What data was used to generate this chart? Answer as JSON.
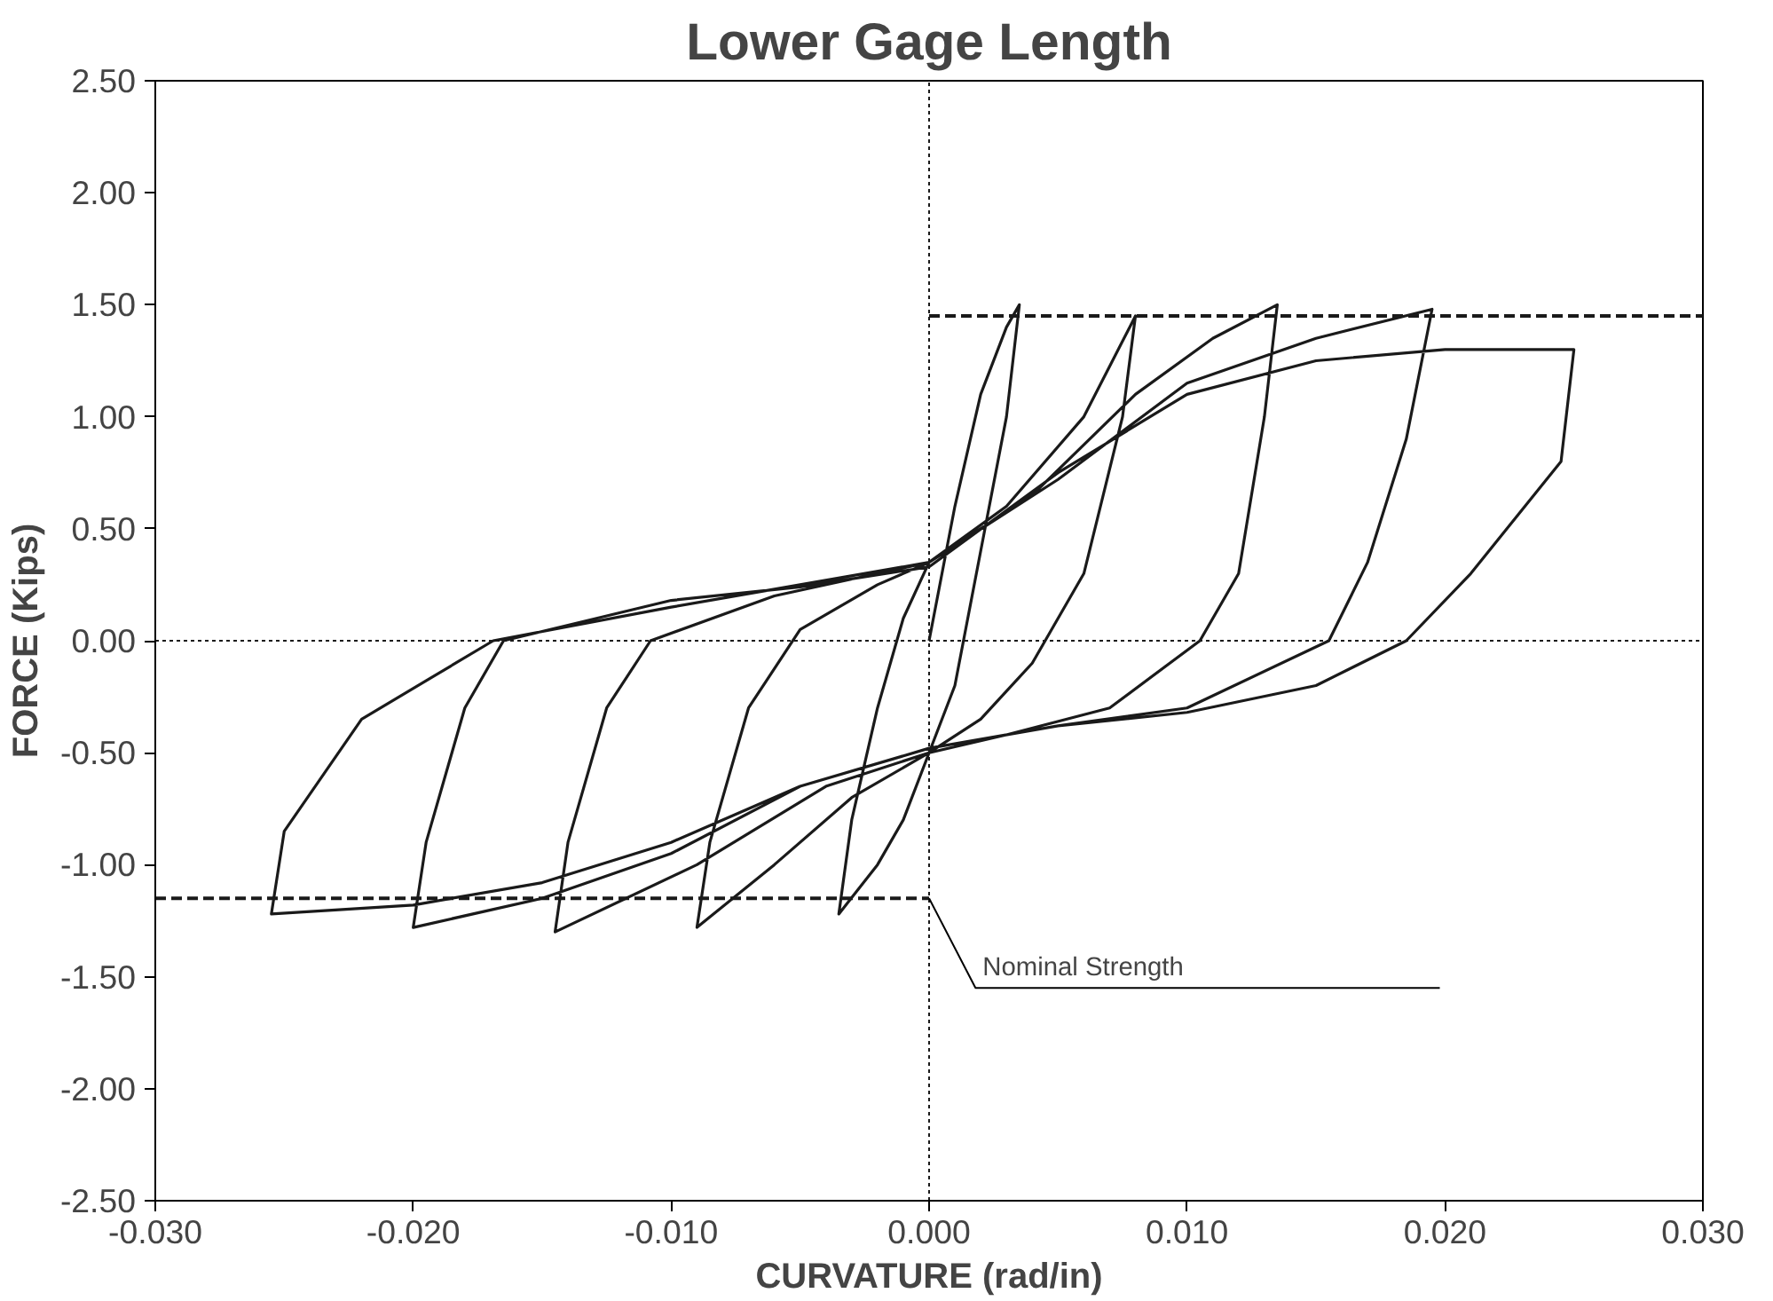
{
  "chart_data": {
    "type": "line",
    "title": "Lower Gage Length",
    "xlabel": "CURVATURE (rad/in)",
    "ylabel": "FORCE (Kips)",
    "xlim": [
      -0.03,
      0.03
    ],
    "ylim": [
      -2.5,
      2.5
    ],
    "xticks": [
      {
        "value": -0.03,
        "label": "-0.030"
      },
      {
        "value": -0.02,
        "label": "-0.020"
      },
      {
        "value": -0.01,
        "label": "-0.010"
      },
      {
        "value": 0,
        "label": "0.000"
      },
      {
        "value": 0.01,
        "label": "0.010"
      },
      {
        "value": 0.02,
        "label": "0.020"
      },
      {
        "value": 0.03,
        "label": "0.030"
      }
    ],
    "yticks": [
      {
        "value": 2.5,
        "label": "2.50"
      },
      {
        "value": 2.0,
        "label": "2.00"
      },
      {
        "value": 1.5,
        "label": "1.50"
      },
      {
        "value": 1.0,
        "label": "1.00"
      },
      {
        "value": 0.5,
        "label": "0.50"
      },
      {
        "value": 0,
        "label": "0.00"
      },
      {
        "value": -0.5,
        "label": "-0.50"
      },
      {
        "value": -1.0,
        "label": "-1.00"
      },
      {
        "value": -1.5,
        "label": "-1.50"
      },
      {
        "value": -2.0,
        "label": "-2.00"
      },
      {
        "value": -2.5,
        "label": "-2.50"
      }
    ],
    "grid": false,
    "marker": "none",
    "series": [
      {
        "color": "#1a1a1a",
        "line_style": "solid",
        "x": [
          0,
          0.001,
          0.002,
          0.003,
          0.0035,
          0.003,
          0.002,
          0.001,
          0,
          -0.001,
          -0.002,
          -0.0035,
          -0.003,
          -0.002,
          -0.001,
          0,
          0.003,
          0.006,
          0.008,
          0.0075,
          0.006,
          0.004,
          0.002,
          0,
          -0.003,
          -0.006,
          -0.009,
          -0.0085,
          -0.007,
          -0.005,
          -0.002,
          0,
          0.004,
          0.008,
          0.011,
          0.0135,
          0.013,
          0.012,
          0.0105,
          0.007,
          0.003,
          0,
          -0.004,
          -0.009,
          -0.0145,
          -0.014,
          -0.0125,
          -0.0108,
          -0.006,
          0,
          0.005,
          0.01,
          0.015,
          0.0195,
          0.0185,
          0.017,
          0.0155,
          0.01,
          0.005,
          0,
          -0.005,
          -0.01,
          -0.015,
          -0.02,
          -0.0195,
          -0.018,
          -0.0165,
          -0.01,
          -0.005,
          0,
          0.005,
          0.01,
          0.015,
          0.02,
          0.025,
          0.0245,
          0.021,
          0.0185,
          0.015,
          0.01,
          0.005,
          0,
          -0.005,
          -0.01,
          -0.015,
          -0.02,
          -0.0255,
          -0.025,
          -0.022,
          -0.0169,
          -0.01,
          -0.005,
          0
        ],
        "values": [
          0,
          0.6,
          1.1,
          1.4,
          1.5,
          1.0,
          0.4,
          -0.2,
          -0.5,
          -0.8,
          -1.0,
          -1.22,
          -0.8,
          -0.3,
          0.1,
          0.35,
          0.6,
          1.0,
          1.45,
          1.0,
          0.3,
          -0.1,
          -0.35,
          -0.5,
          -0.7,
          -1.0,
          -1.28,
          -0.9,
          -0.3,
          0.05,
          0.25,
          0.35,
          0.65,
          1.1,
          1.35,
          1.5,
          1.0,
          0.3,
          0,
          -0.3,
          -0.42,
          -0.5,
          -0.65,
          -1.0,
          -1.3,
          -0.9,
          -0.3,
          0,
          0.2,
          0.35,
          0.72,
          1.15,
          1.35,
          1.48,
          0.9,
          0.35,
          0,
          -0.3,
          -0.38,
          -0.48,
          -0.65,
          -0.95,
          -1.15,
          -1.28,
          -0.9,
          -0.3,
          0,
          0.18,
          0.24,
          0.33,
          0.75,
          1.1,
          1.25,
          1.3,
          1.3,
          0.8,
          0.3,
          0,
          -0.2,
          -0.32,
          -0.38,
          -0.48,
          -0.65,
          -0.9,
          -1.08,
          -1.18,
          -1.22,
          -0.85,
          -0.35,
          0,
          0.15,
          0.25,
          0.35
        ]
      },
      {
        "color": "#1a1a1a",
        "line_style": "dashed",
        "x": [
          0,
          0.03
        ],
        "values": [
          1.45,
          1.45
        ]
      },
      {
        "color": "#1a1a1a",
        "line_style": "dashed",
        "x": [
          -0.03,
          0
        ],
        "values": [
          -1.15,
          -1.15
        ]
      },
      {
        "color": "#1a1a1a",
        "line_style": "dotted",
        "x": [
          0,
          0
        ],
        "values": [
          -2.5,
          2.5
        ]
      },
      {
        "color": "#1a1a1a",
        "line_style": "dotted",
        "x": [
          -0.03,
          0.03
        ],
        "values": [
          0,
          0
        ]
      }
    ],
    "annotations": [
      {
        "text": "Nominal Strength",
        "x": 0,
        "y": -1.15
      }
    ]
  }
}
